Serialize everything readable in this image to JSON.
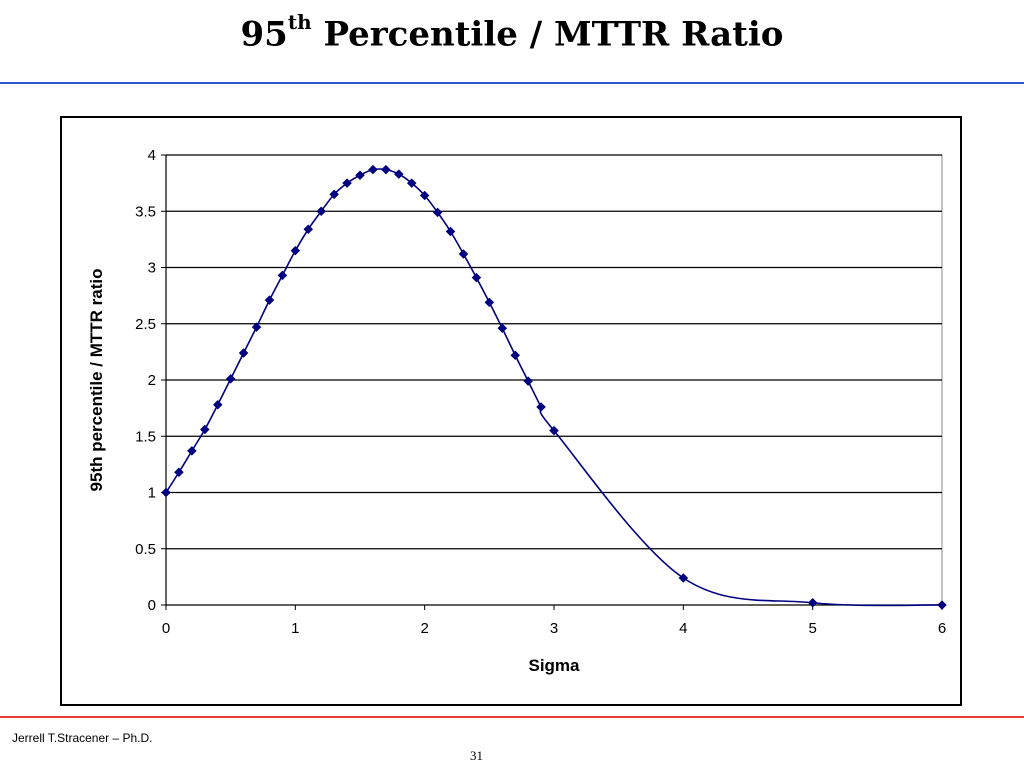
{
  "slide": {
    "title_main": "95",
    "title_sup": "th",
    "title_rest": " Percentile / MTTR Ratio",
    "footer_author": "Jerrell T.Stracener – Ph.D.",
    "page_number": "31"
  },
  "colors": {
    "series": "#000080",
    "top_rule": "#3355cc",
    "bottom_rule": "#e83a3a"
  },
  "chart_data": {
    "type": "line",
    "title": "",
    "xlabel": "Sigma",
    "ylabel": "95th percentile / MTTR ratio",
    "xlim": [
      0,
      6
    ],
    "ylim": [
      0,
      4
    ],
    "xticks": [
      0,
      1,
      2,
      3,
      4,
      5,
      6
    ],
    "yticks": [
      0,
      0.5,
      1,
      1.5,
      2,
      2.5,
      3,
      3.5,
      4
    ],
    "grid": "horizontal",
    "legend": "none",
    "marker": "diamond",
    "series": [
      {
        "points": [
          [
            0,
            1.0
          ],
          [
            0.1,
            1.18
          ],
          [
            0.2,
            1.37
          ],
          [
            0.3,
            1.56
          ],
          [
            0.4,
            1.78
          ],
          [
            0.5,
            2.01
          ],
          [
            0.6,
            2.24
          ],
          [
            0.7,
            2.47
          ],
          [
            0.8,
            2.71
          ],
          [
            0.9,
            2.93
          ],
          [
            1.0,
            3.15
          ],
          [
            1.1,
            3.34
          ],
          [
            1.2,
            3.5
          ],
          [
            1.3,
            3.65
          ],
          [
            1.4,
            3.75
          ],
          [
            1.5,
            3.82
          ],
          [
            1.6,
            3.87
          ],
          [
            1.7,
            3.87
          ],
          [
            1.8,
            3.83
          ],
          [
            1.9,
            3.75
          ],
          [
            2.0,
            3.64
          ],
          [
            2.1,
            3.49
          ],
          [
            2.2,
            3.32
          ],
          [
            2.3,
            3.12
          ],
          [
            2.4,
            2.91
          ],
          [
            2.5,
            2.69
          ],
          [
            2.6,
            2.46
          ],
          [
            2.7,
            2.22
          ],
          [
            2.8,
            1.99
          ],
          [
            2.9,
            1.76
          ],
          [
            3.0,
            1.55
          ],
          [
            4.0,
            0.24
          ],
          [
            5.0,
            0.02
          ],
          [
            6.0,
            0.0
          ]
        ]
      }
    ]
  }
}
